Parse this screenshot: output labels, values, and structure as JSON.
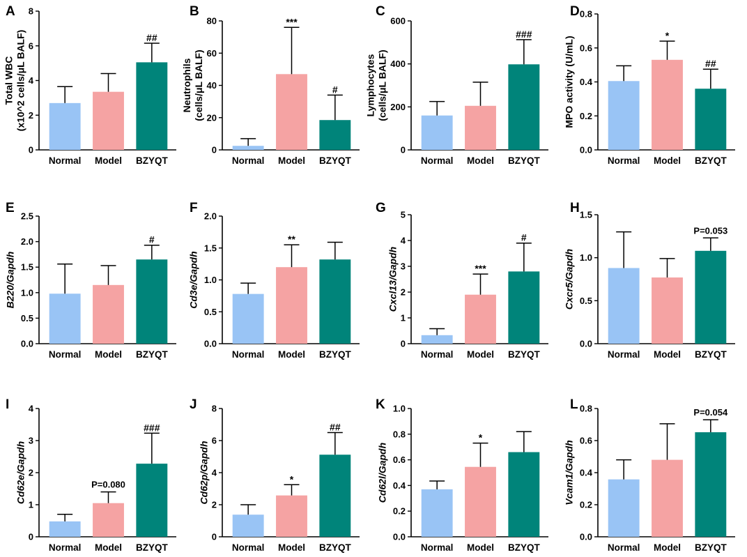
{
  "figure": {
    "categories": [
      "Normal",
      "Model",
      "BZYQT"
    ],
    "colors": [
      "#99c4f5",
      "#f5a3a3",
      "#00847a"
    ]
  },
  "chart_data": [
    {
      "letter": "A",
      "type": "bar",
      "ylabel_lines": [
        "Total WBC",
        "(x10^2 cells/μL BALF)"
      ],
      "ylabel_italic": false,
      "categories": [
        "Normal",
        "Model",
        "BZYQT"
      ],
      "ylim": [
        0,
        8
      ],
      "ticks": [
        "0",
        "2",
        "4",
        "6",
        "8"
      ],
      "values": [
        2.7,
        3.35,
        5.05
      ],
      "errors": [
        0.95,
        1.05,
        1.1
      ],
      "annotations": [
        "",
        "",
        "##"
      ]
    },
    {
      "letter": "B",
      "type": "bar",
      "ylabel_lines": [
        "Neutrophils",
        "(cells/μL BALF)"
      ],
      "ylabel_italic": false,
      "categories": [
        "Normal",
        "Model",
        "BZYQT"
      ],
      "ylim": [
        0,
        80
      ],
      "ticks": [
        "0",
        "20",
        "40",
        "60",
        "80"
      ],
      "values": [
        2.5,
        47,
        18.5
      ],
      "errors": [
        4.5,
        29,
        15.5
      ],
      "annotations": [
        "",
        "***",
        "#"
      ]
    },
    {
      "letter": "C",
      "type": "bar",
      "ylabel_lines": [
        "Lymphocytes",
        "(cells/μL BALF)"
      ],
      "ylabel_italic": false,
      "categories": [
        "Normal",
        "Model",
        "BZYQT"
      ],
      "ylim": [
        0,
        600
      ],
      "ticks": [
        "0",
        "200",
        "400",
        "600"
      ],
      "values": [
        160,
        205,
        398
      ],
      "errors": [
        65,
        110,
        115
      ],
      "annotations": [
        "",
        "",
        "###"
      ]
    },
    {
      "letter": "D",
      "type": "bar",
      "ylabel_lines": [
        "MPO activity (U/mL)"
      ],
      "ylabel_italic": false,
      "categories": [
        "Normal",
        "Model",
        "BZYQT"
      ],
      "ylim": [
        0,
        0.8
      ],
      "ticks": [
        "0.0",
        "0.2",
        "0.4",
        "0.6",
        "0.8"
      ],
      "values": [
        0.405,
        0.53,
        0.36
      ],
      "errors": [
        0.09,
        0.11,
        0.115
      ],
      "annotations": [
        "",
        "*",
        "##"
      ]
    },
    {
      "letter": "E",
      "type": "bar",
      "ylabel_lines": [
        "B220/Gapdh"
      ],
      "ylabel_italic": true,
      "categories": [
        "Normal",
        "Model",
        "BZYQT"
      ],
      "ylim": [
        0,
        2.5
      ],
      "ticks": [
        "0.0",
        "0.5",
        "1.0",
        "1.5",
        "2.0",
        "2.5"
      ],
      "values": [
        0.98,
        1.15,
        1.65
      ],
      "errors": [
        0.58,
        0.38,
        0.28
      ],
      "annotations": [
        "",
        "",
        "#"
      ]
    },
    {
      "letter": "F",
      "type": "bar",
      "ylabel_lines": [
        "Cd3e/Gapdh"
      ],
      "ylabel_italic": true,
      "categories": [
        "Normal",
        "Model",
        "BZYQT"
      ],
      "ylim": [
        0,
        2.0
      ],
      "ticks": [
        "0.0",
        "0.5",
        "1.0",
        "1.5",
        "2.0"
      ],
      "values": [
        0.78,
        1.2,
        1.32
      ],
      "errors": [
        0.17,
        0.35,
        0.27
      ],
      "annotations": [
        "",
        "**",
        ""
      ]
    },
    {
      "letter": "G",
      "type": "bar",
      "ylabel_lines": [
        "Cxcl13/Gapdh"
      ],
      "ylabel_italic": true,
      "categories": [
        "Normal",
        "Model",
        "BZYQT"
      ],
      "ylim": [
        0,
        5
      ],
      "ticks": [
        "0",
        "1",
        "2",
        "3",
        "4",
        "5"
      ],
      "values": [
        0.33,
        1.9,
        2.8
      ],
      "errors": [
        0.25,
        0.8,
        1.1
      ],
      "annotations": [
        "",
        "***",
        "#"
      ]
    },
    {
      "letter": "H",
      "type": "bar",
      "ylabel_lines": [
        "Cxcr5/Gapdh"
      ],
      "ylabel_italic": true,
      "categories": [
        "Normal",
        "Model",
        "BZYQT"
      ],
      "ylim": [
        0,
        1.5
      ],
      "ticks": [
        "0.0",
        "0.5",
        "1.0",
        "1.5"
      ],
      "values": [
        0.88,
        0.77,
        1.08
      ],
      "errors": [
        0.42,
        0.22,
        0.15
      ],
      "annotations": [
        "",
        "",
        "P=0.053"
      ]
    },
    {
      "letter": "I",
      "type": "bar",
      "ylabel_lines": [
        "Cd62e/Gapdh"
      ],
      "ylabel_italic": true,
      "categories": [
        "Normal",
        "Model",
        "BZYQT"
      ],
      "ylim": [
        0,
        4
      ],
      "ticks": [
        "0",
        "1",
        "2",
        "3",
        "4"
      ],
      "values": [
        0.48,
        1.05,
        2.28
      ],
      "errors": [
        0.22,
        0.35,
        0.95
      ],
      "annotations": [
        "",
        "P=0.080",
        "###"
      ]
    },
    {
      "letter": "J",
      "type": "bar",
      "ylabel_lines": [
        "Cd62p/Gapdh"
      ],
      "ylabel_italic": true,
      "categories": [
        "Normal",
        "Model",
        "BZYQT"
      ],
      "ylim": [
        0,
        8
      ],
      "ticks": [
        "0",
        "2",
        "4",
        "6",
        "8"
      ],
      "values": [
        1.38,
        2.58,
        5.12
      ],
      "errors": [
        0.62,
        0.67,
        1.38
      ],
      "annotations": [
        "",
        "*",
        "##"
      ]
    },
    {
      "letter": "K",
      "type": "bar",
      "ylabel_lines": [
        "Cd62l/Gapdh"
      ],
      "ylabel_italic": true,
      "categories": [
        "Normal",
        "Model",
        "BZYQT"
      ],
      "ylim": [
        0,
        1.0
      ],
      "ticks": [
        "0.0",
        "0.2",
        "0.4",
        "0.6",
        "0.8",
        "1.0"
      ],
      "values": [
        0.37,
        0.545,
        0.66
      ],
      "errors": [
        0.065,
        0.185,
        0.16
      ],
      "annotations": [
        "",
        "*",
        ""
      ]
    },
    {
      "letter": "L",
      "type": "bar",
      "ylabel_lines": [
        "Vcam1/Gapdh"
      ],
      "ylabel_italic": true,
      "categories": [
        "Normal",
        "Model",
        "BZYQT"
      ],
      "ylim": [
        0,
        0.8
      ],
      "ticks": [
        "0.0",
        "0.2",
        "0.4",
        "0.6",
        "0.8"
      ],
      "values": [
        0.358,
        0.48,
        0.652
      ],
      "errors": [
        0.122,
        0.225,
        0.078
      ],
      "annotations": [
        "",
        "",
        "P=0.054"
      ]
    }
  ]
}
